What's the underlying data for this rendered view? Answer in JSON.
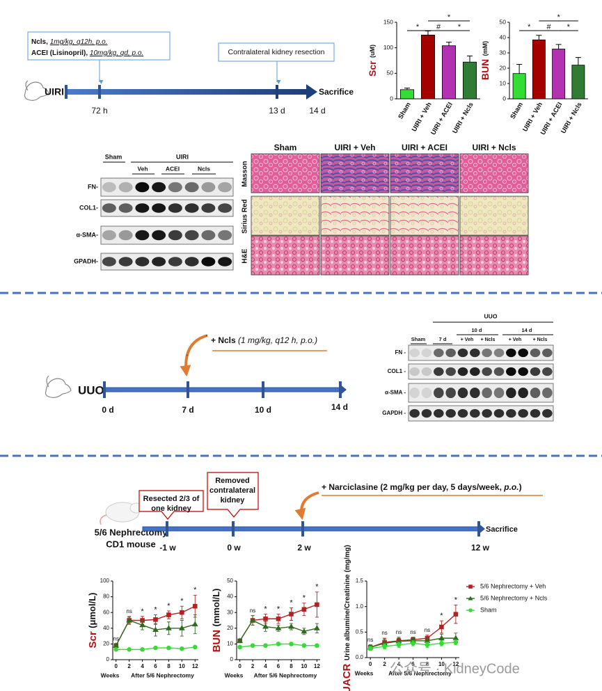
{
  "panel_a": {
    "timeline": {
      "model": "UIRI",
      "drug1": "Ncls,",
      "dose1": "1mg/kg, q12h, p.o.",
      "drug2": "ACEI (Lisinopril),",
      "dose2": "10mg/kg, qd, p.o.",
      "event": "Contralateral kidney resection",
      "ticks": [
        "72 h",
        "13 d",
        "14 d"
      ],
      "end": "Sacrifice"
    },
    "blot": {
      "groups": [
        "Sham",
        "UIRI"
      ],
      "subgroups": [
        "Veh",
        "ACEI",
        "Ncls"
      ],
      "rows": [
        "FN-",
        "COL1-",
        "α-SMA-",
        "GPADH-"
      ]
    },
    "histology": {
      "columns": [
        "Sham",
        "UIRI + Veh",
        "UIRI + ACEI",
        "UIRI + Ncls"
      ],
      "rows": [
        "Masson",
        "Sirius Red",
        "H&E"
      ]
    }
  },
  "panel_b": {
    "timeline": {
      "model": "UUO",
      "treatment": "+ Ncls ",
      "dose": "(1 mg/kg, q12 h, p.o.)",
      "ticks": [
        "0 d",
        "7 d",
        "10 d",
        "14 d"
      ]
    },
    "blot": {
      "title": "UUO",
      "groups": [
        "Sham",
        "7 d",
        "10 d",
        "14 d"
      ],
      "subgroups": [
        "+ Veh",
        "+ Ncls",
        "+ Veh",
        "+ Ncls"
      ],
      "rows": [
        "FN -",
        "COL1 -",
        "α-SMA -",
        "GAPDH -"
      ]
    }
  },
  "panel_c": {
    "timeline": {
      "model": "5/6 Nephrectomy",
      "strain": "CD1 mouse",
      "step1": [
        "Resected 2/3 of",
        "one kidney"
      ],
      "step2": [
        "Removed",
        "contralateral",
        "kidney"
      ],
      "treatment": "+ Narciclasine (2 mg/kg per day, 5 days/week, ",
      "route": "p.o.",
      "close": ")",
      "ticks": [
        "-1 w",
        "0 w",
        "2 w",
        "12 w"
      ],
      "end": "Sacrifice"
    }
  },
  "chart_data": [
    {
      "type": "bar",
      "ylabel": "Scr",
      "yunit": "(uM)",
      "categories": [
        "Sham",
        "UIRI + Veh",
        "UIRI + ACEI",
        "UIRI + Ncls"
      ],
      "values": [
        18,
        125,
        104,
        72
      ],
      "errors": [
        3,
        8,
        7,
        12
      ],
      "colors": [
        "#33dd33",
        "#a50000",
        "#b232b2",
        "#2e7d32"
      ],
      "ylim": [
        0,
        150
      ],
      "yticks": [
        0,
        50,
        100,
        150
      ],
      "significance": [
        {
          "label": "*",
          "between": [
            "Sham",
            "UIRI + Veh"
          ]
        },
        {
          "label": "#",
          "between": [
            "UIRI + Veh",
            "UIRI + ACEI"
          ]
        },
        {
          "label": "*",
          "between": [
            "UIRI + ACEI",
            "UIRI + Ncls"
          ]
        },
        {
          "label": "*",
          "between": [
            "UIRI + Veh",
            "UIRI + Ncls"
          ]
        }
      ]
    },
    {
      "type": "bar",
      "ylabel": "BUN",
      "yunit": "(mM)",
      "categories": [
        "Sham",
        "UIRI + Veh",
        "UIRI + ACEI",
        "UIRI + Ncls"
      ],
      "values": [
        16.5,
        38.5,
        32.5,
        22
      ],
      "errors": [
        6,
        3,
        3,
        5
      ],
      "colors": [
        "#33dd33",
        "#a50000",
        "#b232b2",
        "#2e7d32"
      ],
      "ylim": [
        0,
        50
      ],
      "yticks": [
        0,
        10,
        20,
        30,
        40,
        50
      ],
      "significance": [
        {
          "label": "*",
          "between": [
            "Sham",
            "UIRI + Veh"
          ]
        },
        {
          "label": "#",
          "between": [
            "UIRI + Veh",
            "UIRI + ACEI"
          ]
        },
        {
          "label": "*",
          "between": [
            "UIRI + ACEI",
            "UIRI + Ncls"
          ]
        },
        {
          "label": "*",
          "between": [
            "UIRI + Veh",
            "UIRI + Ncls"
          ]
        }
      ]
    },
    {
      "type": "line",
      "ylabel": "Scr",
      "yunit": "(μmol/L)",
      "xlabel": [
        "Weeks",
        "After 5/6 Nephrectomy"
      ],
      "x": [
        0,
        2,
        4,
        6,
        8,
        10,
        12
      ],
      "xlim": [
        -0.5,
        12.5
      ],
      "xticks": [
        0,
        2,
        4,
        6,
        8,
        10,
        12
      ],
      "ylim": [
        0,
        100
      ],
      "yticks": [
        0,
        20,
        40,
        60,
        80,
        100
      ],
      "series": [
        {
          "color": "#b22222",
          "values": [
            18,
            50,
            50,
            51,
            57,
            60,
            68
          ],
          "errors": [
            2,
            5,
            5,
            6,
            5,
            8,
            14
          ]
        },
        {
          "color": "#2e6b1f",
          "values": [
            18,
            50,
            44,
            38,
            40,
            40,
            45
          ],
          "errors": [
            2,
            4,
            6,
            8,
            8,
            10,
            12
          ]
        },
        {
          "color": "#33dd33",
          "values": [
            13,
            13,
            13,
            15,
            15,
            14,
            16
          ],
          "errors": [
            1,
            1,
            1,
            1,
            1,
            1,
            1
          ]
        }
      ],
      "annotations": [
        "ns",
        "ns",
        "*",
        "*",
        "*",
        "*",
        "*"
      ]
    },
    {
      "type": "line",
      "ylabel": "BUN",
      "yunit": "(mmol/L)",
      "xlabel": [
        "Weeks",
        "After 5/6 Nephrectomy"
      ],
      "x": [
        0,
        2,
        4,
        6,
        8,
        10,
        12
      ],
      "xlim": [
        -0.5,
        12.5
      ],
      "xticks": [
        0,
        2,
        4,
        6,
        8,
        10,
        12
      ],
      "ylim": [
        0,
        50
      ],
      "yticks": [
        0,
        10,
        20,
        30,
        40,
        50
      ],
      "series": [
        {
          "color": "#b22222",
          "values": [
            12,
            25,
            26,
            26,
            29,
            32,
            35
          ],
          "errors": [
            1,
            3,
            3,
            3,
            4,
            4,
            8
          ]
        },
        {
          "color": "#2e6b1f",
          "values": [
            12,
            25,
            21,
            20,
            21,
            18,
            20
          ],
          "errors": [
            1,
            3,
            3,
            2,
            2,
            2,
            3
          ]
        },
        {
          "color": "#33dd33",
          "values": [
            8,
            9,
            9,
            10,
            10,
            9,
            9
          ],
          "errors": [
            1,
            1,
            1,
            1,
            1,
            1,
            1
          ]
        }
      ],
      "annotations": [
        null,
        "ns",
        "*",
        "*",
        "*",
        "*",
        "*"
      ]
    },
    {
      "type": "line",
      "ylabel": "UACR",
      "yunit": "Urine albumine/Creatinine (mg/mg)",
      "xlabel": [
        "Weeks",
        "After 5/6 Nephrectomy"
      ],
      "x": [
        0,
        2,
        4,
        6,
        8,
        10,
        12
      ],
      "xlim": [
        -0.5,
        12.5
      ],
      "xticks": [
        0,
        2,
        4,
        6,
        8,
        10,
        12
      ],
      "ylim": [
        0,
        1.5
      ],
      "yticks": [
        {
          "value": 0,
          "label": "0.0"
        },
        {
          "value": 0.5,
          "label": "0.5"
        },
        {
          "value": 1,
          "label": "1.0"
        },
        {
          "value": 1.5,
          "label": "1.5"
        }
      ],
      "series": [
        {
          "name": "5/6 Nephrectomy + Veh",
          "color": "#b22222",
          "values": [
            0.2,
            0.3,
            0.33,
            0.35,
            0.38,
            0.6,
            0.85
          ],
          "errors": [
            0.05,
            0.08,
            0.05,
            0.05,
            0.06,
            0.12,
            0.18
          ]
        },
        {
          "name": "5/6 Nephrectomy + Ncls",
          "color": "#2e6b1f",
          "values": [
            0.2,
            0.28,
            0.32,
            0.33,
            0.33,
            0.38,
            0.38
          ],
          "errors": [
            0.05,
            0.08,
            0.08,
            0.06,
            0.05,
            0.08,
            0.1
          ]
        },
        {
          "name": "Sham",
          "color": "#33dd33",
          "values": [
            0.18,
            0.22,
            0.25,
            0.28,
            0.25,
            0.28,
            0.3
          ],
          "errors": [
            0.04,
            0.05,
            0.05,
            0.05,
            0.05,
            0.05,
            0.05
          ]
        }
      ],
      "annotations": [
        "ns",
        "ns",
        "ns",
        "ns",
        "ns",
        "*",
        "*"
      ],
      "legend": "right"
    }
  ],
  "watermark": "公众号 · KidneyCode"
}
